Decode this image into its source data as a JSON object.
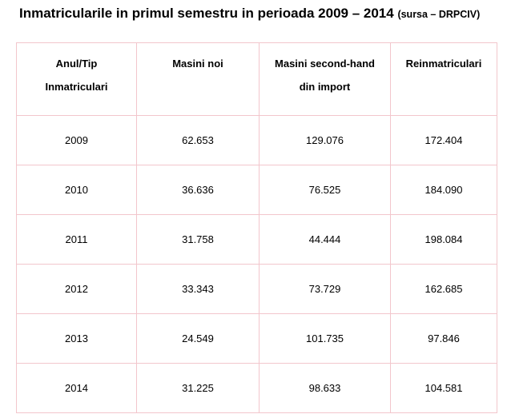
{
  "title": {
    "main": "Inmatricularile in primul semestru in perioada 2009 – 2014",
    "source": "(sursa – DRPCIV)"
  },
  "table": {
    "headers": [
      [
        "Anul/Tip",
        "Inmatriculari"
      ],
      [
        "Masini noi"
      ],
      [
        "Masini second-hand",
        "din import"
      ],
      [
        "Reinmatriculari"
      ]
    ],
    "rows": [
      [
        "2009",
        "62.653",
        "129.076",
        "172.404"
      ],
      [
        "2010",
        "36.636",
        "76.525",
        "184.090"
      ],
      [
        "2011",
        "31.758",
        "44.444",
        "198.084"
      ],
      [
        "2012",
        "33.343",
        "73.729",
        "162.685"
      ],
      [
        "2013",
        "24.549",
        "101.735",
        "97.846"
      ],
      [
        "2014",
        "31.225",
        "98.633",
        "104.581"
      ]
    ]
  },
  "colors": {
    "border": "#f2c6cc",
    "text": "#000000",
    "background": "#ffffff"
  }
}
